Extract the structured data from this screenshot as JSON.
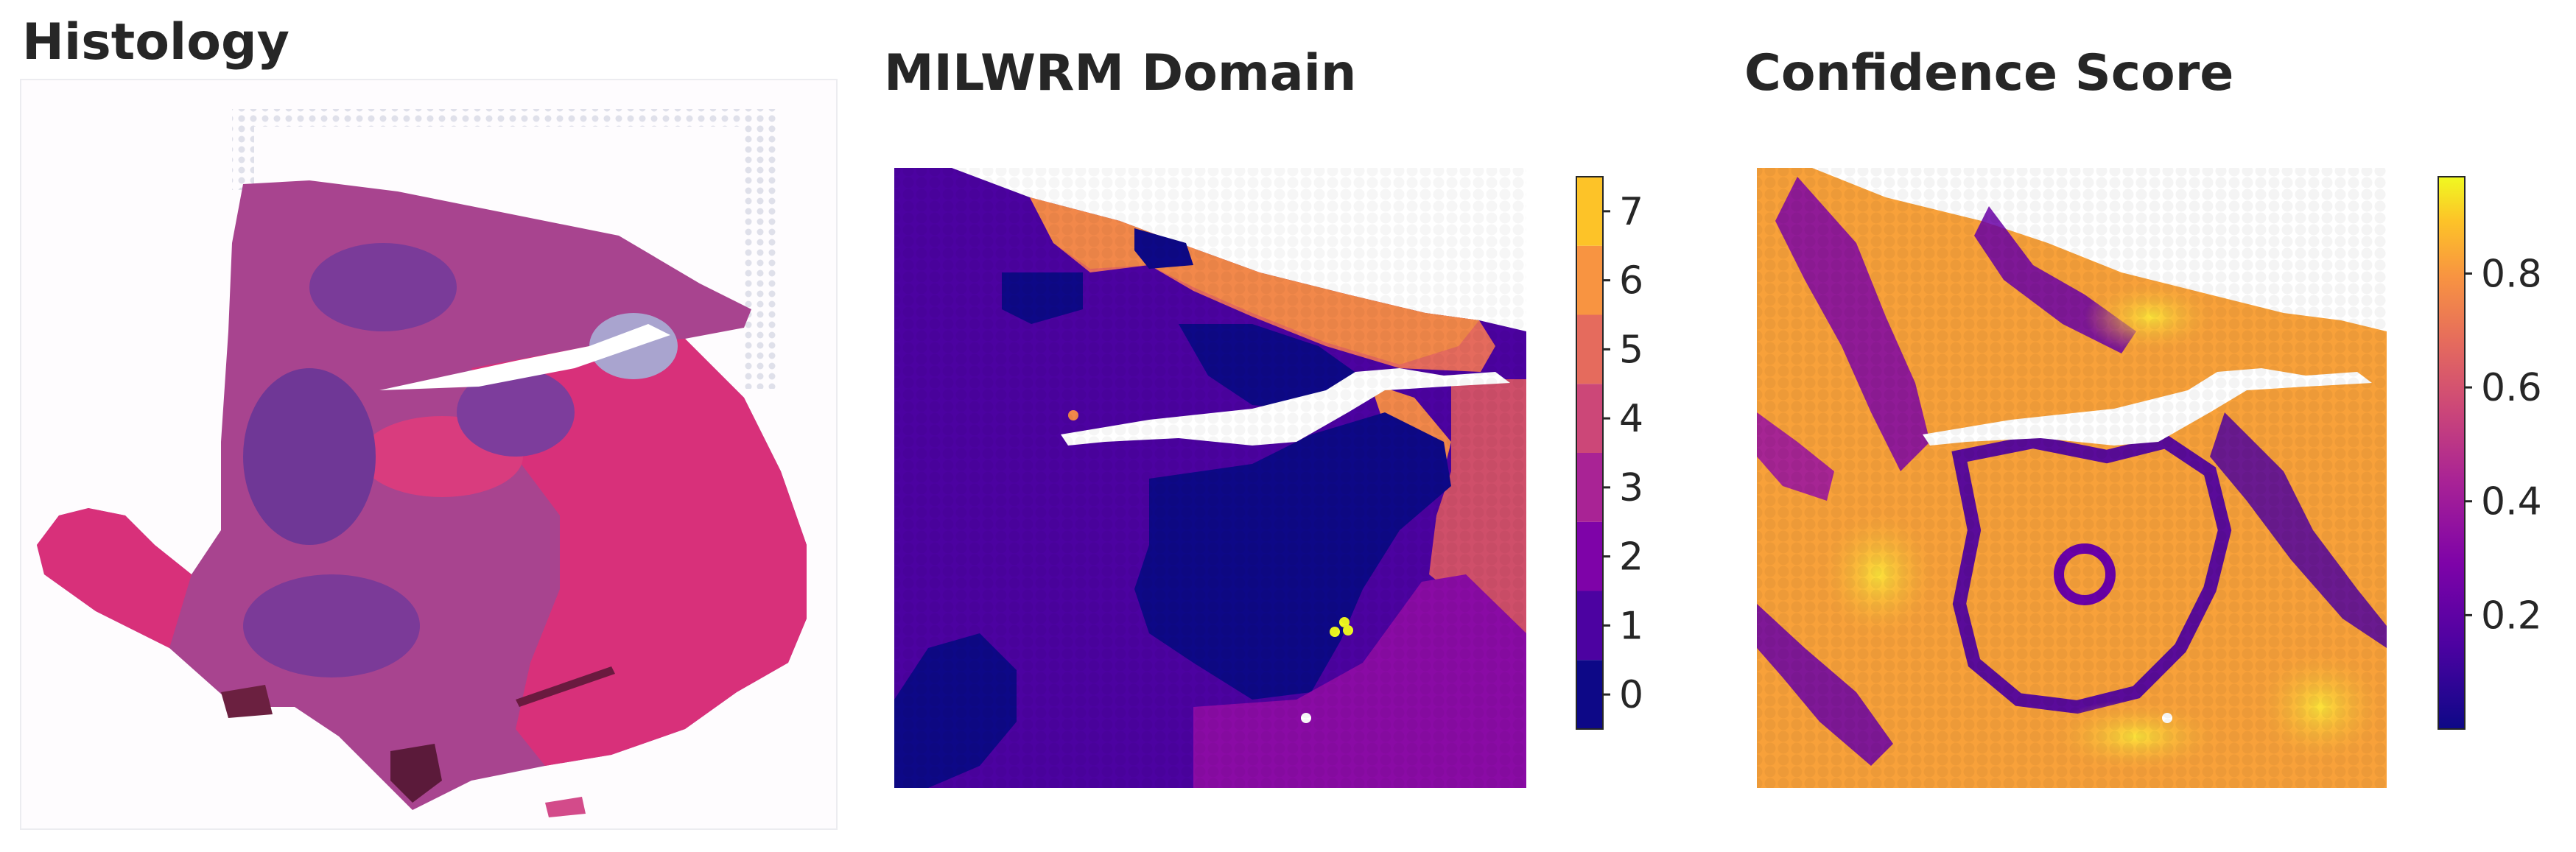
{
  "panels": {
    "histology": {
      "title": "Histology"
    },
    "domain": {
      "title": "MILWRM Domain"
    },
    "confidence": {
      "title": "Confidence Score"
    }
  },
  "colorbars": {
    "domain": {
      "ticks": [
        "0",
        "1",
        "2",
        "3",
        "4",
        "5",
        "6",
        "7"
      ],
      "colors": [
        "#0d0887",
        "#4c02a1",
        "#7e03a8",
        "#a92395",
        "#cc4778",
        "#e56b5d",
        "#f89441",
        "#fdc328",
        "#f0f921"
      ]
    },
    "confidence": {
      "ticks": [
        "0.2",
        "0.4",
        "0.6",
        "0.8"
      ],
      "tick_values": [
        0.2,
        0.4,
        0.6,
        0.8
      ],
      "range": [
        0.0,
        0.97
      ]
    }
  },
  "colors": {
    "tissue_pink": "#d8307a",
    "tissue_purple": "#8a3ea0",
    "tissue_dark": "#5b2a86"
  }
}
